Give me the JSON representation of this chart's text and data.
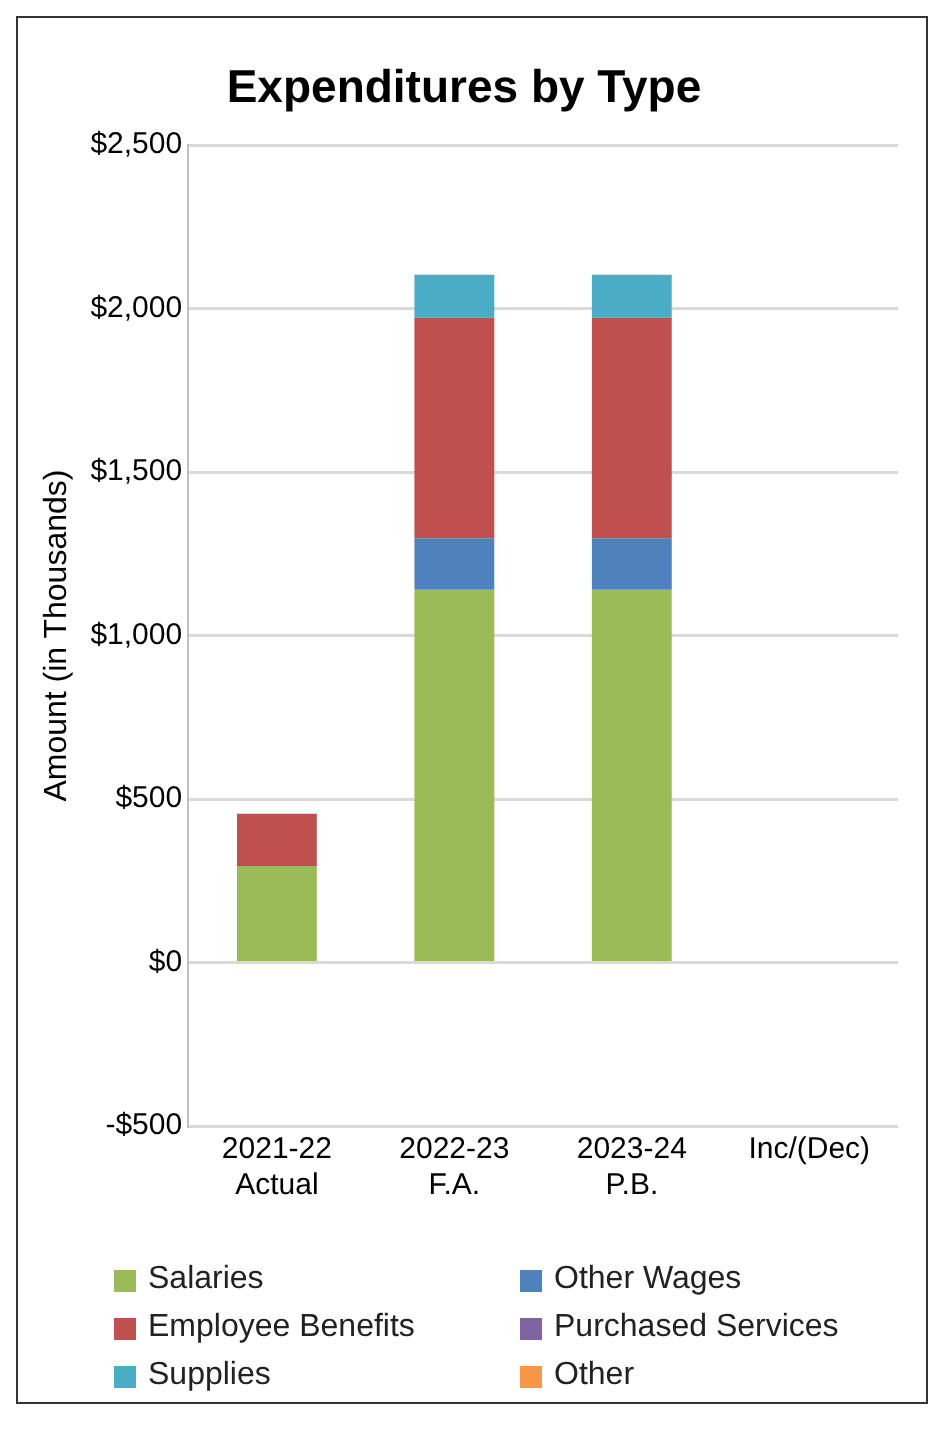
{
  "chart_data": {
    "type": "bar",
    "title": "Expenditures by Type",
    "ylabel": "Amount (in Thousands)",
    "categories": [
      "2021-22\nActual",
      "2022-23\nF.A.",
      "2023-24\nP.B.",
      "Inc/(Dec)"
    ],
    "stacked": true,
    "series": [
      {
        "name": "Salaries",
        "color": "#9bbb59",
        "values": [
          295,
          1140,
          1140,
          null
        ]
      },
      {
        "name": "Other Wages",
        "color": "#4f81bd",
        "values": [
          null,
          158,
          158,
          null
        ]
      },
      {
        "name": "Employee Benefits",
        "color": "#c0504d",
        "values": [
          160,
          675,
          675,
          null
        ]
      },
      {
        "name": "Purchased Services",
        "color": "#8064a2",
        "values": [
          null,
          null,
          null,
          null
        ]
      },
      {
        "name": "Supplies",
        "color": "#4bacc6",
        "values": [
          null,
          131,
          131,
          null
        ]
      },
      {
        "name": "Other",
        "color": "#f79646",
        "values": [
          null,
          null,
          null,
          null
        ]
      }
    ],
    "ylim": [
      -500,
      2500
    ],
    "yticks": [
      {
        "value": -500,
        "label": "-$500"
      },
      {
        "value": 0,
        "label": "$0"
      },
      {
        "value": 500,
        "label": "$500"
      },
      {
        "value": 1000,
        "label": "$1,000"
      },
      {
        "value": 1500,
        "label": "$1,500"
      },
      {
        "value": 2000,
        "label": "$2,000"
      },
      {
        "value": 2500,
        "label": "$2,500"
      }
    ],
    "grid": "y",
    "legend": "bottom"
  }
}
